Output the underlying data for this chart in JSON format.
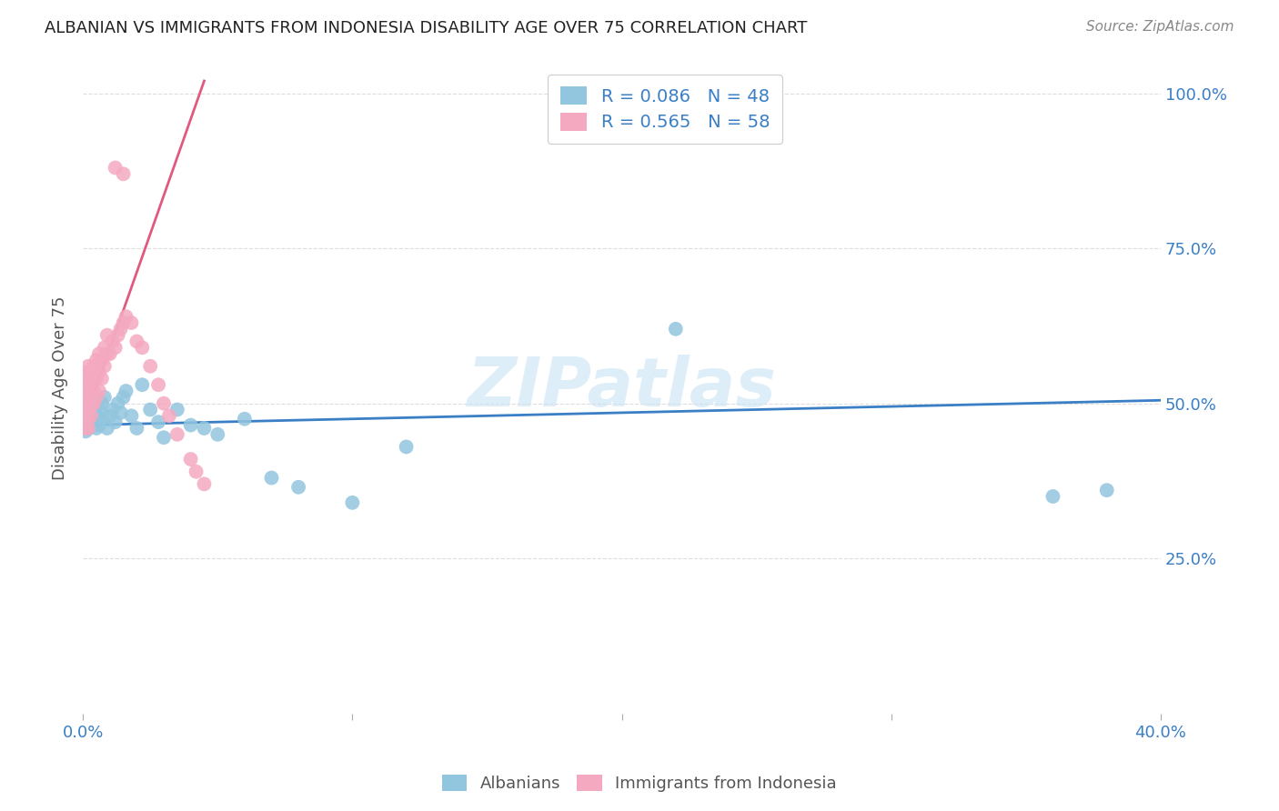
{
  "title": "ALBANIAN VS IMMIGRANTS FROM INDONESIA DISABILITY AGE OVER 75 CORRELATION CHART",
  "source": "Source: ZipAtlas.com",
  "ylabel": "Disability Age Over 75",
  "watermark": "ZIPatlas",
  "R_albanians": 0.086,
  "N_albanians": 48,
  "R_indonesia": 0.565,
  "N_indonesia": 58,
  "color_albanians": "#92c5de",
  "color_indonesia": "#f4a9c0",
  "color_line_albanians": "#3a7ec6",
  "color_line_indonesia": "#e05a80",
  "color_axis_text": "#3a7ec6",
  "color_ylabel": "#555555",
  "color_title": "#222222",
  "color_source": "#888888",
  "color_legend_border": "#cccccc",
  "color_grid": "#dddddd",
  "background_color": "#ffffff",
  "xlim": [
    0.0,
    0.4
  ],
  "ylim": [
    0.0,
    1.05
  ],
  "xtick_positions": [
    0.0,
    0.1,
    0.2,
    0.3,
    0.4
  ],
  "ytick_positions": [
    0.0,
    0.25,
    0.5,
    0.75,
    1.0
  ],
  "ytick_labels": [
    "",
    "25.0%",
    "50.0%",
    "75.0%",
    "100.0%"
  ],
  "alb_line_x": [
    0.0,
    0.4
  ],
  "alb_line_y": [
    0.465,
    0.505
  ],
  "ind_line_x": [
    0.0,
    0.045
  ],
  "ind_line_y": [
    0.465,
    1.02
  ],
  "alb_x": [
    0.001,
    0.001,
    0.001,
    0.001,
    0.002,
    0.002,
    0.002,
    0.002,
    0.003,
    0.003,
    0.003,
    0.004,
    0.004,
    0.004,
    0.005,
    0.005,
    0.005,
    0.006,
    0.006,
    0.007,
    0.007,
    0.008,
    0.009,
    0.01,
    0.011,
    0.012,
    0.013,
    0.014,
    0.015,
    0.016,
    0.018,
    0.02,
    0.022,
    0.025,
    0.028,
    0.03,
    0.035,
    0.04,
    0.045,
    0.05,
    0.06,
    0.07,
    0.08,
    0.1,
    0.12,
    0.22,
    0.36,
    0.38
  ],
  "alb_y": [
    0.47,
    0.48,
    0.455,
    0.49,
    0.46,
    0.475,
    0.495,
    0.5,
    0.465,
    0.485,
    0.51,
    0.47,
    0.49,
    0.5,
    0.46,
    0.48,
    0.505,
    0.465,
    0.49,
    0.475,
    0.5,
    0.51,
    0.46,
    0.48,
    0.49,
    0.47,
    0.5,
    0.485,
    0.51,
    0.52,
    0.48,
    0.46,
    0.53,
    0.49,
    0.47,
    0.445,
    0.49,
    0.465,
    0.46,
    0.45,
    0.475,
    0.38,
    0.365,
    0.34,
    0.43,
    0.62,
    0.35,
    0.36
  ],
  "ind_x": [
    0.001,
    0.001,
    0.001,
    0.001,
    0.001,
    0.001,
    0.001,
    0.001,
    0.001,
    0.001,
    0.002,
    0.002,
    0.002,
    0.002,
    0.002,
    0.002,
    0.002,
    0.003,
    0.003,
    0.003,
    0.003,
    0.003,
    0.004,
    0.004,
    0.004,
    0.004,
    0.005,
    0.005,
    0.005,
    0.006,
    0.006,
    0.006,
    0.007,
    0.007,
    0.008,
    0.008,
    0.009,
    0.009,
    0.01,
    0.011,
    0.012,
    0.013,
    0.014,
    0.015,
    0.016,
    0.018,
    0.02,
    0.022,
    0.025,
    0.028,
    0.03,
    0.032,
    0.035,
    0.04,
    0.042,
    0.045,
    0.012,
    0.015
  ],
  "ind_y": [
    0.46,
    0.475,
    0.48,
    0.485,
    0.49,
    0.5,
    0.51,
    0.53,
    0.54,
    0.55,
    0.46,
    0.475,
    0.49,
    0.5,
    0.52,
    0.54,
    0.56,
    0.48,
    0.495,
    0.51,
    0.53,
    0.55,
    0.5,
    0.52,
    0.54,
    0.56,
    0.51,
    0.54,
    0.57,
    0.52,
    0.55,
    0.58,
    0.54,
    0.57,
    0.56,
    0.59,
    0.58,
    0.61,
    0.58,
    0.6,
    0.59,
    0.61,
    0.62,
    0.63,
    0.64,
    0.63,
    0.6,
    0.59,
    0.56,
    0.53,
    0.5,
    0.48,
    0.45,
    0.41,
    0.39,
    0.37,
    0.88,
    0.87
  ]
}
